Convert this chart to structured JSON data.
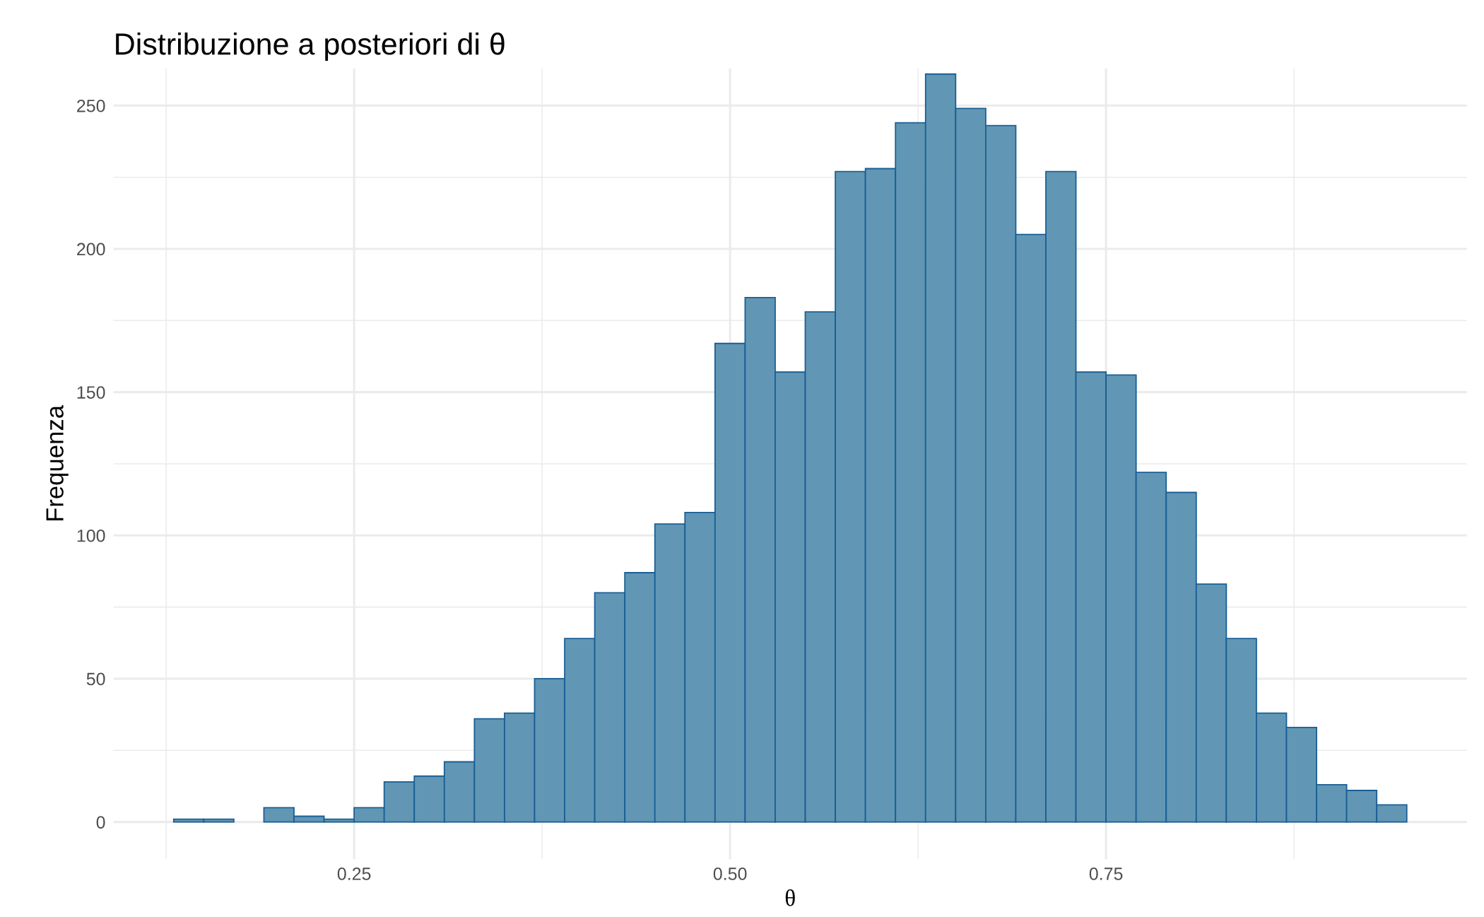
{
  "chart_data": {
    "type": "histogram",
    "title": "Distribuzione a posteriori di θ",
    "xlabel": "θ",
    "ylabel": "Frequenza",
    "bins": [
      0.13,
      0.15,
      0.17,
      0.19,
      0.21,
      0.23,
      0.25,
      0.27,
      0.29,
      0.31,
      0.33,
      0.35,
      0.37,
      0.39,
      0.41,
      0.43,
      0.45,
      0.47,
      0.49,
      0.51,
      0.53,
      0.55,
      0.57,
      0.59,
      0.61,
      0.63,
      0.65,
      0.67,
      0.69,
      0.71,
      0.73,
      0.75,
      0.77,
      0.79,
      0.81,
      0.83,
      0.85,
      0.87,
      0.89,
      0.91,
      0.93,
      0.95
    ],
    "values": [
      1,
      1,
      0,
      5,
      2,
      1,
      5,
      14,
      16,
      21,
      36,
      38,
      50,
      64,
      80,
      87,
      104,
      108,
      167,
      183,
      157,
      178,
      227,
      228,
      244,
      261,
      249,
      243,
      205,
      227,
      157,
      156,
      122,
      115,
      83,
      64,
      38,
      33,
      13,
      11,
      6
    ],
    "color": "#6197b5",
    "xlim": [
      0.09,
      0.99
    ],
    "xticks": [
      {
        "value": 0.25,
        "label": "0.25"
      },
      {
        "value": 0.5,
        "label": "0.50"
      },
      {
        "value": 0.75,
        "label": "0.75"
      }
    ],
    "ylim": [
      -13,
      263
    ],
    "yticks": [
      0,
      50,
      100,
      150,
      200,
      250
    ],
    "grid": true
  }
}
